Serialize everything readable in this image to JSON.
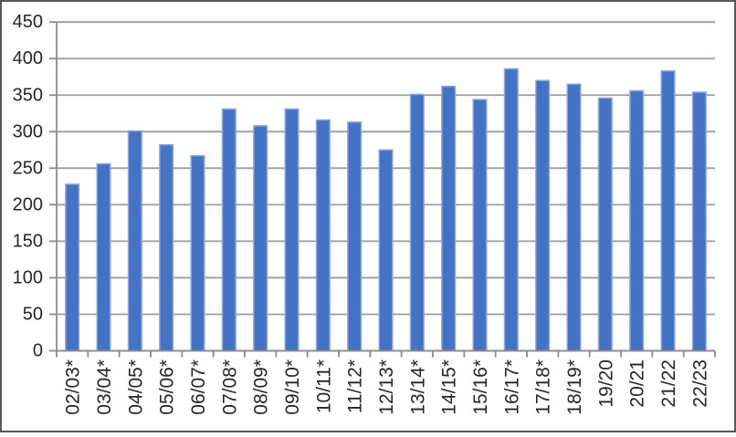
{
  "window": {
    "background": "#ffffff",
    "frame_border_color": "#575757"
  },
  "chart_data": {
    "type": "bar",
    "title": "",
    "xlabel": "",
    "ylabel": "",
    "categories": [
      "02/03*",
      "03/04*",
      "04/05*",
      "05/06*",
      "06/07*",
      "07/08*",
      "08/09*",
      "09/10*",
      "10/11*",
      "11/12*",
      "12/13*",
      "13/14*",
      "14/15*",
      "15/16*",
      "16/17*",
      "17/18*",
      "18/19*",
      "19/20",
      "20/21",
      "21/22",
      "22/23"
    ],
    "values": [
      228,
      256,
      301,
      282,
      267,
      331,
      308,
      331,
      316,
      313,
      275,
      351,
      362,
      344,
      386,
      370,
      365,
      346,
      356,
      383,
      354
    ],
    "ylim": [
      0,
      450
    ],
    "ytick_step": 50,
    "ytick_labels": [
      "0",
      "50",
      "100",
      "150",
      "200",
      "250",
      "300",
      "350",
      "400",
      "450"
    ],
    "grid": true,
    "legend": "none",
    "colors": {
      "bar_fill": "#4472c4",
      "bar_border": "#8ba7de",
      "gridline": "#9c9c9c",
      "axis": "#8a8a8a",
      "tick": "#8a8a8a",
      "label_text": "#262626"
    }
  }
}
